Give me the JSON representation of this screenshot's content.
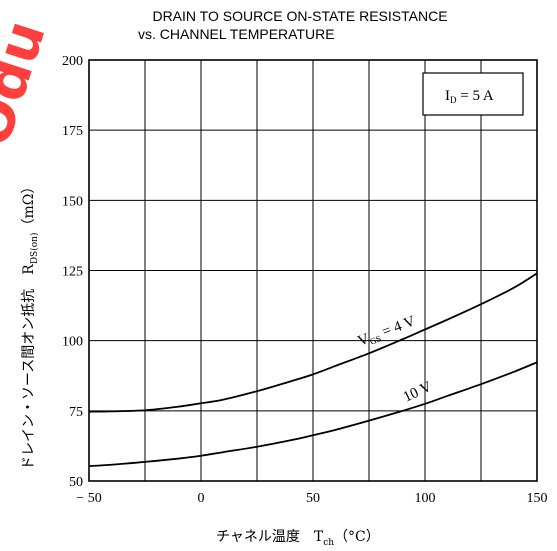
{
  "chart_data": {
    "type": "line",
    "title_line1": "DRAIN TO SOURCE ON-STATE RESISTANCE",
    "title_line2": "vs. CHANNEL TEMPERATURE",
    "ylabel_main": "ドレイン・ソース間オン抵抗　R",
    "ylabel_sub": "DS(on)",
    "ylabel_unit": "（mΩ）",
    "xlabel_main": "チャネル温度　T",
    "xlabel_sub": "ch",
    "xlabel_unit": "（°C）",
    "xlim": [
      -50,
      150
    ],
    "ylim": [
      50,
      200
    ],
    "x_ticks": [
      -50,
      0,
      50,
      100,
      150
    ],
    "x_tick_labels": [
      "− 50",
      "0",
      "50",
      "100",
      "150"
    ],
    "x_grid_step": 25,
    "y_ticks": [
      50,
      75,
      100,
      125,
      150,
      175,
      200
    ],
    "y_tick_labels": [
      "50",
      "75",
      "100",
      "125",
      "150",
      "175",
      "200"
    ],
    "y_grid_step": 25,
    "grid": true,
    "condition": {
      "prefix": "I",
      "sub": "D",
      "suffix": " = 5 A",
      "placement": "top-right"
    },
    "series": [
      {
        "label_main": "V",
        "label_sub": "GS",
        "label_suffix": " = 4 V",
        "x": [
          -50,
          -40,
          -25,
          -10,
          0,
          10,
          25,
          40,
          50,
          60,
          75,
          90,
          100,
          110,
          125,
          140,
          150
        ],
        "y": [
          74.7,
          74.8,
          75.2,
          76.5,
          77.7,
          79.0,
          82.0,
          85.5,
          88.0,
          91.0,
          95.5,
          100.5,
          104.0,
          107.5,
          113.0,
          119.0,
          124.0
        ]
      },
      {
        "label_main": "10 V",
        "label_sub": "",
        "label_suffix": "",
        "x": [
          -50,
          -40,
          -25,
          -10,
          0,
          10,
          25,
          40,
          50,
          60,
          75,
          90,
          100,
          110,
          125,
          140,
          150
        ],
        "y": [
          55.3,
          55.8,
          56.8,
          58.0,
          59.0,
          60.3,
          62.2,
          64.5,
          66.3,
          68.2,
          71.5,
          75.0,
          77.5,
          80.3,
          84.5,
          89.0,
          92.3
        ]
      }
    ]
  },
  "watermark": {
    "text": "Odu",
    "color": "#ff2a2a"
  }
}
